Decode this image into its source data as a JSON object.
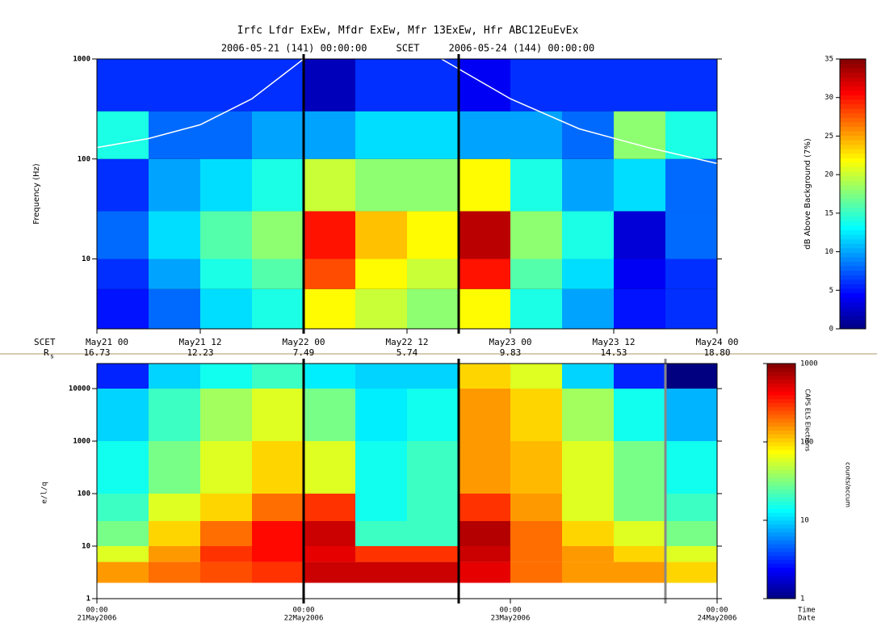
{
  "chart_data": [
    {
      "type": "spectrogram",
      "title": "Irfc Lfdr ExEw, Mfdr ExEw, Mfr 13ExEw, Hfr ABC12EuEvEx",
      "subtitle": "2006-05-21 (141) 00:00:00     SCET     2006-05-24 (144) 00:00:00",
      "y_label": "Frequency (Hz)",
      "colorbar_label": "dB Above Background (7%)",
      "x_row_label": "SCET",
      "rs_label": "R",
      "rs_subscript": "s",
      "rs_values": [
        "16.73",
        "12.23",
        "7.49",
        "5.74",
        "9.83",
        "14.53",
        "18.80"
      ],
      "xlim": [
        0,
        72
      ],
      "xticks": [
        {
          "value": 0,
          "label": "May21 00"
        },
        {
          "value": 12,
          "label": "May21 12"
        },
        {
          "value": 24,
          "label": "May22 00"
        },
        {
          "value": 36,
          "label": "May22 12"
        },
        {
          "value": 48,
          "label": "May23 00"
        },
        {
          "value": 60,
          "label": "May23 12"
        },
        {
          "value": 72,
          "label": "May24 00"
        }
      ],
      "ylim": [
        2,
        1000
      ],
      "yticks": [
        10,
        100,
        1000
      ],
      "log_y": true,
      "clim": [
        0,
        35
      ],
      "cticks": [
        0,
        5,
        10,
        15,
        20,
        25,
        30,
        35
      ],
      "x_edges": [
        0,
        6,
        12,
        18,
        24,
        30,
        36,
        42,
        48,
        54,
        60,
        66,
        72
      ],
      "y_edges": [
        2,
        5,
        10,
        30,
        100,
        300,
        1000
      ],
      "values": [
        [
          5,
          8,
          12,
          14,
          22,
          20,
          18,
          22,
          14,
          10,
          5,
          6
        ],
        [
          6,
          10,
          14,
          16,
          28,
          22,
          20,
          30,
          16,
          12,
          4,
          6
        ],
        [
          8,
          12,
          16,
          18,
          30,
          24,
          22,
          33,
          18,
          14,
          3,
          8
        ],
        [
          6,
          10,
          12,
          14,
          20,
          18,
          18,
          22,
          14,
          10,
          12,
          8
        ],
        [
          14,
          8,
          8,
          10,
          10,
          12,
          12,
          10,
          10,
          8,
          18,
          14
        ],
        [
          6,
          6,
          6,
          6,
          2,
          6,
          6,
          4,
          6,
          6,
          6,
          6
        ]
      ],
      "line": {
        "color": "#ffffff",
        "x": [
          0,
          6,
          12,
          18,
          24,
          32,
          40,
          48,
          56,
          64,
          72
        ],
        "values": [
          130,
          160,
          220,
          400,
          1000,
          null,
          1000,
          400,
          200,
          130,
          90
        ]
      },
      "markers": [
        24,
        42
      ]
    },
    {
      "type": "spectrogram",
      "y_label": "e/l/q",
      "colorbar_label": "CAPS ELS Electrons",
      "colorbar_unit": "counts/accum",
      "xlim": [
        0,
        72
      ],
      "xticks": [
        {
          "value": 0,
          "label": "00:00",
          "date": "21May2006"
        },
        {
          "value": 24,
          "label": "00:00",
          "date": "22May2006"
        },
        {
          "value": 48,
          "label": "00:00",
          "date": "23May2006"
        },
        {
          "value": 72,
          "label": "00:00",
          "date": "24May2006"
        }
      ],
      "time_label": "Time",
      "date_label": "Date",
      "ylim": [
        1,
        30000
      ],
      "yticks": [
        1,
        10,
        100,
        1000,
        10000
      ],
      "log_y": true,
      "clim": [
        1,
        1000
      ],
      "cticks": [
        1,
        10,
        100,
        1000
      ],
      "log_c": true,
      "x_edges": [
        0,
        6,
        12,
        18,
        24,
        30,
        36,
        42,
        48,
        54,
        60,
        66,
        72
      ],
      "y_edges": [
        2,
        5,
        10,
        30,
        100,
        1000,
        10000,
        30000
      ],
      "values": [
        [
          150,
          200,
          250,
          300,
          600,
          600,
          600,
          500,
          200,
          150,
          150,
          100
        ],
        [
          60,
          150,
          300,
          400,
          500,
          300,
          300,
          600,
          200,
          150,
          100,
          60
        ],
        [
          30,
          100,
          200,
          400,
          600,
          20,
          20,
          700,
          200,
          100,
          60,
          30
        ],
        [
          20,
          60,
          100,
          200,
          300,
          15,
          20,
          300,
          150,
          60,
          30,
          20
        ],
        [
          15,
          30,
          60,
          100,
          60,
          15,
          20,
          150,
          120,
          60,
          30,
          15
        ],
        [
          10,
          20,
          40,
          60,
          30,
          12,
          15,
          150,
          100,
          40,
          15,
          8
        ],
        [
          3,
          10,
          15,
          20,
          12,
          10,
          10,
          100,
          60,
          10,
          3,
          1
        ]
      ],
      "markers": [
        24,
        42,
        66
      ]
    }
  ]
}
